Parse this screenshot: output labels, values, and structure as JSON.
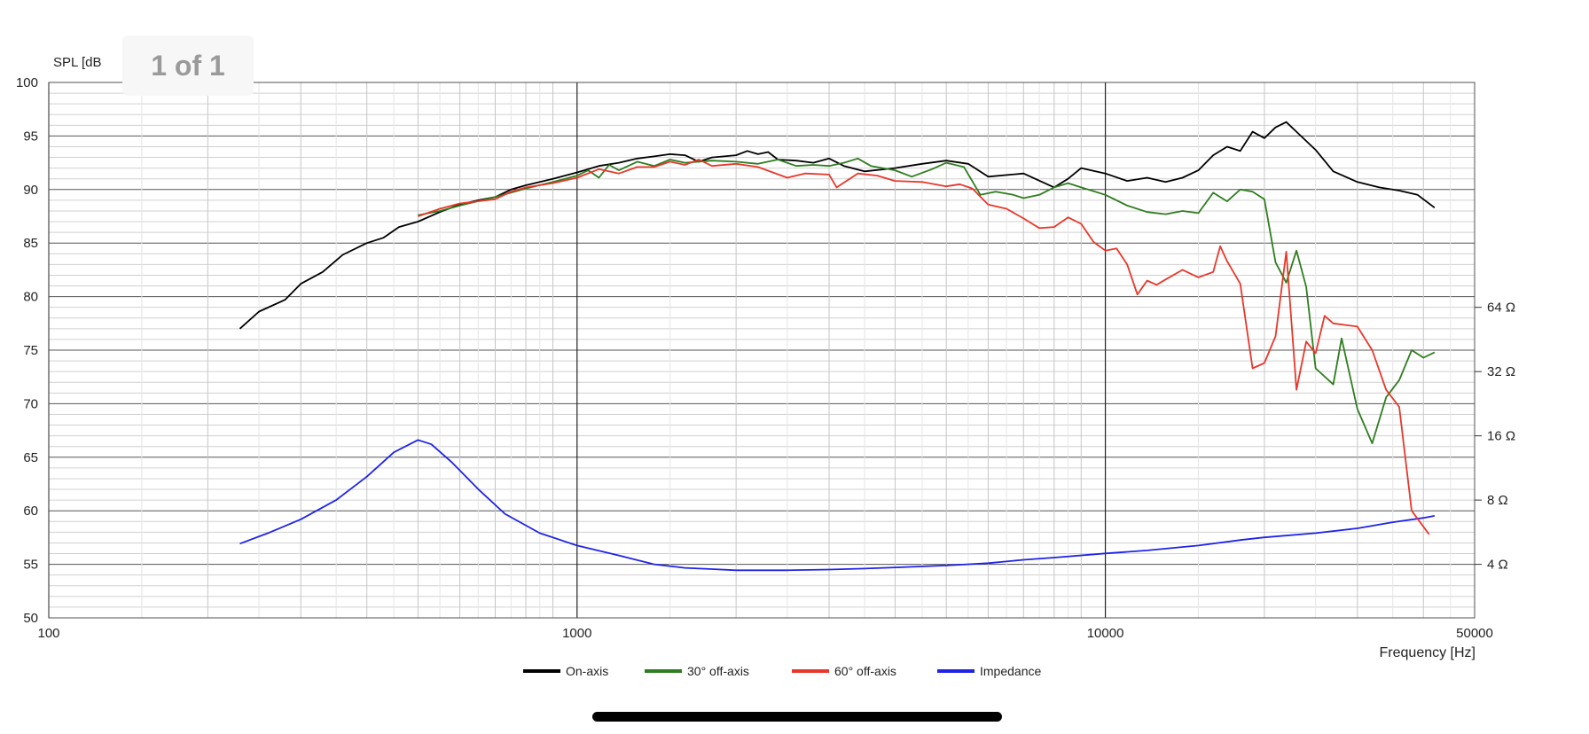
{
  "viewer": {
    "page_indicator": "1 of 1"
  },
  "chart_data": {
    "type": "line",
    "ylabel": "SPL [dB",
    "xlabel": "Frequency [Hz]",
    "x_scale": "log",
    "xlim": [
      100,
      50000
    ],
    "ylim": [
      50,
      100
    ],
    "grid": true,
    "legend_position": "bottom-center",
    "x_tick_labels": [
      "100",
      "1000",
      "10000",
      "50000"
    ],
    "y_tick_labels": [
      "100",
      "95",
      "90",
      "85",
      "80",
      "75",
      "70",
      "65",
      "60",
      "55",
      "50"
    ],
    "impedance_axis": {
      "ticks": [
        {
          "ohms": 64,
          "label": "64 Ω"
        },
        {
          "ohms": 32,
          "label": "32 Ω"
        },
        {
          "ohms": 16,
          "label": "16 Ω"
        },
        {
          "ohms": 8,
          "label": "8 Ω"
        },
        {
          "ohms": 4,
          "label": "4 Ω"
        }
      ]
    },
    "series": [
      {
        "name": "On-axis",
        "color": "#000000",
        "points": [
          [
            230,
            77
          ],
          [
            250,
            78.6
          ],
          [
            280,
            79.7
          ],
          [
            300,
            81.2
          ],
          [
            330,
            82.3
          ],
          [
            360,
            83.9
          ],
          [
            400,
            85
          ],
          [
            430,
            85.5
          ],
          [
            460,
            86.5
          ],
          [
            500,
            87
          ],
          [
            550,
            87.9
          ],
          [
            600,
            88.6
          ],
          [
            650,
            89
          ],
          [
            700,
            89.3
          ],
          [
            750,
            90
          ],
          [
            800,
            90.4
          ],
          [
            900,
            91
          ],
          [
            1000,
            91.6
          ],
          [
            1100,
            92.2
          ],
          [
            1200,
            92.5
          ],
          [
            1300,
            92.9
          ],
          [
            1400,
            93.1
          ],
          [
            1500,
            93.3
          ],
          [
            1600,
            93.2
          ],
          [
            1700,
            92.6
          ],
          [
            1800,
            93
          ],
          [
            2000,
            93.2
          ],
          [
            2100,
            93.6
          ],
          [
            2200,
            93.3
          ],
          [
            2300,
            93.5
          ],
          [
            2400,
            92.8
          ],
          [
            2600,
            92.7
          ],
          [
            2800,
            92.5
          ],
          [
            3000,
            92.9
          ],
          [
            3200,
            92.2
          ],
          [
            3500,
            91.7
          ],
          [
            4000,
            92
          ],
          [
            4500,
            92.4
          ],
          [
            5000,
            92.7
          ],
          [
            5500,
            92.4
          ],
          [
            6000,
            91.2
          ],
          [
            7000,
            91.5
          ],
          [
            8000,
            90.2
          ],
          [
            8500,
            91
          ],
          [
            9000,
            92
          ],
          [
            10000,
            91.5
          ],
          [
            11000,
            90.8
          ],
          [
            12000,
            91.1
          ],
          [
            13000,
            90.7
          ],
          [
            14000,
            91.1
          ],
          [
            15000,
            91.8
          ],
          [
            16000,
            93.2
          ],
          [
            17000,
            94
          ],
          [
            18000,
            93.6
          ],
          [
            19000,
            95.4
          ],
          [
            20000,
            94.8
          ],
          [
            21000,
            95.8
          ],
          [
            22000,
            96.3
          ],
          [
            23000,
            95.4
          ],
          [
            25000,
            93.7
          ],
          [
            27000,
            91.7
          ],
          [
            30000,
            90.7
          ],
          [
            33000,
            90.2
          ],
          [
            36000,
            89.9
          ],
          [
            39000,
            89.5
          ],
          [
            42000,
            88.3
          ]
        ]
      },
      {
        "name": "30° off-axis",
        "color": "#2e7d1f",
        "points": [
          [
            500,
            87.6
          ],
          [
            550,
            88
          ],
          [
            600,
            88.5
          ],
          [
            700,
            89.3
          ],
          [
            800,
            90.1
          ],
          [
            900,
            90.7
          ],
          [
            1000,
            91.3
          ],
          [
            1050,
            91.8
          ],
          [
            1100,
            91.1
          ],
          [
            1150,
            92.3
          ],
          [
            1200,
            91.8
          ],
          [
            1300,
            92.6
          ],
          [
            1400,
            92.2
          ],
          [
            1500,
            92.8
          ],
          [
            1600,
            92.5
          ],
          [
            1800,
            92.7
          ],
          [
            2000,
            92.6
          ],
          [
            2200,
            92.4
          ],
          [
            2400,
            92.8
          ],
          [
            2600,
            92.2
          ],
          [
            2800,
            92.3
          ],
          [
            3000,
            92.2
          ],
          [
            3200,
            92.5
          ],
          [
            3400,
            92.9
          ],
          [
            3600,
            92.2
          ],
          [
            4000,
            91.8
          ],
          [
            4300,
            91.2
          ],
          [
            4700,
            91.9
          ],
          [
            5000,
            92.5
          ],
          [
            5400,
            92.1
          ],
          [
            5800,
            89.5
          ],
          [
            6200,
            89.8
          ],
          [
            6700,
            89.5
          ],
          [
            7000,
            89.2
          ],
          [
            7500,
            89.5
          ],
          [
            8000,
            90.2
          ],
          [
            8500,
            90.6
          ],
          [
            9000,
            90.2
          ],
          [
            10000,
            89.5
          ],
          [
            11000,
            88.5
          ],
          [
            12000,
            87.9
          ],
          [
            13000,
            87.7
          ],
          [
            14000,
            88
          ],
          [
            15000,
            87.8
          ],
          [
            16000,
            89.7
          ],
          [
            17000,
            88.9
          ],
          [
            18000,
            90
          ],
          [
            19000,
            89.8
          ],
          [
            20000,
            89.1
          ],
          [
            21000,
            83.2
          ],
          [
            22000,
            81.3
          ],
          [
            23000,
            84.3
          ],
          [
            24000,
            80.9
          ],
          [
            25000,
            73.3
          ],
          [
            27000,
            71.8
          ],
          [
            28000,
            76.1
          ],
          [
            30000,
            69.5
          ],
          [
            32000,
            66.3
          ],
          [
            34000,
            70.6
          ],
          [
            36000,
            72.2
          ],
          [
            38000,
            75
          ],
          [
            40000,
            74.3
          ],
          [
            42000,
            74.8
          ]
        ]
      },
      {
        "name": "60° off-axis",
        "color": "#e8372a",
        "points": [
          [
            500,
            87.5
          ],
          [
            550,
            88.2
          ],
          [
            600,
            88.7
          ],
          [
            700,
            89.1
          ],
          [
            750,
            89.8
          ],
          [
            800,
            90.2
          ],
          [
            900,
            90.6
          ],
          [
            1000,
            91.1
          ],
          [
            1100,
            91.9
          ],
          [
            1200,
            91.5
          ],
          [
            1300,
            92.1
          ],
          [
            1400,
            92.1
          ],
          [
            1500,
            92.6
          ],
          [
            1600,
            92.3
          ],
          [
            1700,
            92.8
          ],
          [
            1800,
            92.2
          ],
          [
            2000,
            92.4
          ],
          [
            2200,
            92.1
          ],
          [
            2500,
            91.1
          ],
          [
            2700,
            91.5
          ],
          [
            3000,
            91.4
          ],
          [
            3100,
            90.2
          ],
          [
            3400,
            91.5
          ],
          [
            3700,
            91.3
          ],
          [
            4000,
            90.8
          ],
          [
            4500,
            90.7
          ],
          [
            5000,
            90.3
          ],
          [
            5300,
            90.5
          ],
          [
            5600,
            90.1
          ],
          [
            6000,
            88.6
          ],
          [
            6500,
            88.2
          ],
          [
            7000,
            87.3
          ],
          [
            7500,
            86.4
          ],
          [
            8000,
            86.5
          ],
          [
            8500,
            87.4
          ],
          [
            9000,
            86.8
          ],
          [
            9500,
            85.1
          ],
          [
            10000,
            84.3
          ],
          [
            10500,
            84.5
          ],
          [
            11000,
            83
          ],
          [
            11500,
            80.2
          ],
          [
            12000,
            81.5
          ],
          [
            12500,
            81.1
          ],
          [
            13000,
            81.6
          ],
          [
            14000,
            82.5
          ],
          [
            15000,
            81.8
          ],
          [
            16000,
            82.3
          ],
          [
            16500,
            84.7
          ],
          [
            17000,
            83.3
          ],
          [
            18000,
            81.2
          ],
          [
            19000,
            73.3
          ],
          [
            20000,
            73.8
          ],
          [
            21000,
            76.3
          ],
          [
            22000,
            84.2
          ],
          [
            23000,
            71.3
          ],
          [
            24000,
            75.8
          ],
          [
            25000,
            74.7
          ],
          [
            26000,
            78.2
          ],
          [
            27000,
            77.5
          ],
          [
            30000,
            77.2
          ],
          [
            32000,
            75
          ],
          [
            34000,
            71.3
          ],
          [
            36000,
            69.7
          ],
          [
            38000,
            60
          ],
          [
            41000,
            57.8
          ]
        ]
      },
      {
        "name": "Impedance",
        "color": "#1f23e8",
        "axis": "impedance",
        "points": [
          [
            230,
            5
          ],
          [
            260,
            5.6
          ],
          [
            300,
            6.5
          ],
          [
            350,
            8
          ],
          [
            400,
            10.3
          ],
          [
            450,
            13.4
          ],
          [
            500,
            15.3
          ],
          [
            530,
            14.6
          ],
          [
            580,
            12
          ],
          [
            650,
            9
          ],
          [
            730,
            6.9
          ],
          [
            850,
            5.6
          ],
          [
            1000,
            4.9
          ],
          [
            1200,
            4.4
          ],
          [
            1400,
            4
          ],
          [
            1600,
            3.85
          ],
          [
            1800,
            3.8
          ],
          [
            2000,
            3.75
          ],
          [
            2500,
            3.75
          ],
          [
            3000,
            3.78
          ],
          [
            3500,
            3.82
          ],
          [
            4000,
            3.87
          ],
          [
            5000,
            3.95
          ],
          [
            6000,
            4.05
          ],
          [
            7000,
            4.2
          ],
          [
            8000,
            4.3
          ],
          [
            10000,
            4.5
          ],
          [
            12000,
            4.65
          ],
          [
            15000,
            4.9
          ],
          [
            18000,
            5.2
          ],
          [
            20000,
            5.35
          ],
          [
            25000,
            5.6
          ],
          [
            30000,
            5.9
          ],
          [
            35000,
            6.3
          ],
          [
            40000,
            6.6
          ],
          [
            42000,
            6.75
          ]
        ]
      }
    ]
  }
}
